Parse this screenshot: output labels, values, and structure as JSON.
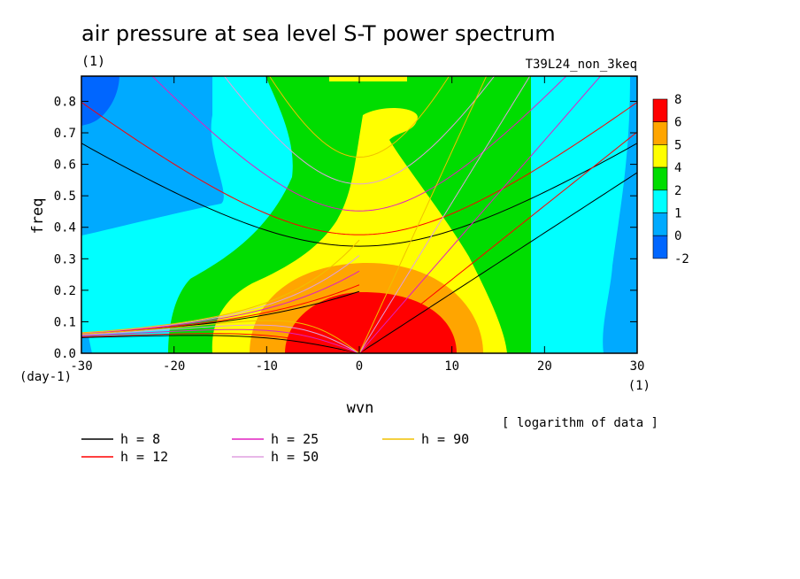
{
  "chart_data": {
    "type": "heatmap",
    "title": "air pressure at sea level S-T power spectrum",
    "subtitle_left": "(1)",
    "subtitle_right": "T39L24_non_3keq",
    "xlabel": "wvn",
    "xunit": "(1)",
    "ylabel": "freq",
    "yunit": "(day-1)",
    "note": "[ logarithm of data ]",
    "xlim": [
      -30,
      30
    ],
    "ylim": [
      0,
      0.88
    ],
    "xticks": [
      -30,
      -20,
      -10,
      0,
      10,
      20,
      30
    ],
    "yticks": [
      0.0,
      0.1,
      0.2,
      0.3,
      0.4,
      0.5,
      0.6,
      0.7,
      0.8
    ],
    "grid": false,
    "colorbar": {
      "levels": [
        "8",
        "6",
        "5",
        "4",
        "2",
        "1",
        "0",
        "-2"
      ],
      "colors": [
        "#ff0000",
        "#ffa500",
        "#ffff00",
        "#00dd00",
        "#00ffff",
        "#00aaff",
        "#0066ff"
      ]
    },
    "legend": {
      "placement": "bottom",
      "items": [
        {
          "label": "h =  8",
          "color": "#000000"
        },
        {
          "label": "h = 12",
          "color": "#ff0000"
        },
        {
          "label": "h = 25",
          "color": "#e020c0"
        },
        {
          "label": "h = 50",
          "color": "#e0a0e0"
        },
        {
          "label": "h = 90",
          "color": "#f0c000"
        }
      ]
    },
    "dispersion_curves": [
      {
        "h": 8,
        "color": "#000000"
      },
      {
        "h": 12,
        "color": "#ff0000"
      },
      {
        "h": 25,
        "color": "#e020c0"
      },
      {
        "h": 50,
        "color": "#e0a0e0"
      },
      {
        "h": 90,
        "color": "#f0c000"
      }
    ]
  }
}
